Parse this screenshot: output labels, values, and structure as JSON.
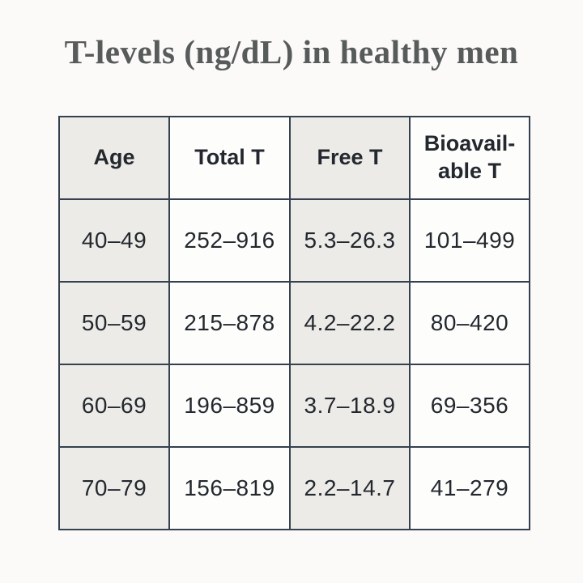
{
  "title": "T-levels (ng/dL) in healthy men",
  "colors": {
    "page_background": "#FBFAF8",
    "shaded_cell": "#ECEBE8",
    "plain_cell": "#FDFDFC",
    "border": "#35414E",
    "cell_text": "#23282E",
    "title_text": "#575B5A"
  },
  "table": {
    "headers_display": [
      "Age",
      "Total T",
      "Free T",
      "Bioavail-\nable T"
    ]
  },
  "chart_data": {
    "type": "table",
    "title": "T-levels (ng/dL) in healthy men",
    "units": "ng/dL",
    "columns": [
      "Age",
      "Total T",
      "Free T",
      "Bioavailable T"
    ],
    "rows": [
      [
        "40–49",
        "252–916",
        "5.3–26.3",
        "101–499"
      ],
      [
        "50–59",
        "215–878",
        "4.2–22.2",
        "80–420"
      ],
      [
        "60–69",
        "196–859",
        "3.7–18.9",
        "69–356"
      ],
      [
        "70–79",
        "156–819",
        "2.2–14.7",
        "41–279"
      ]
    ],
    "layout_hints": {
      "shaded_columns": [
        0,
        2
      ],
      "header_row_shaded_columns": [
        0,
        2
      ],
      "grid": true
    }
  }
}
